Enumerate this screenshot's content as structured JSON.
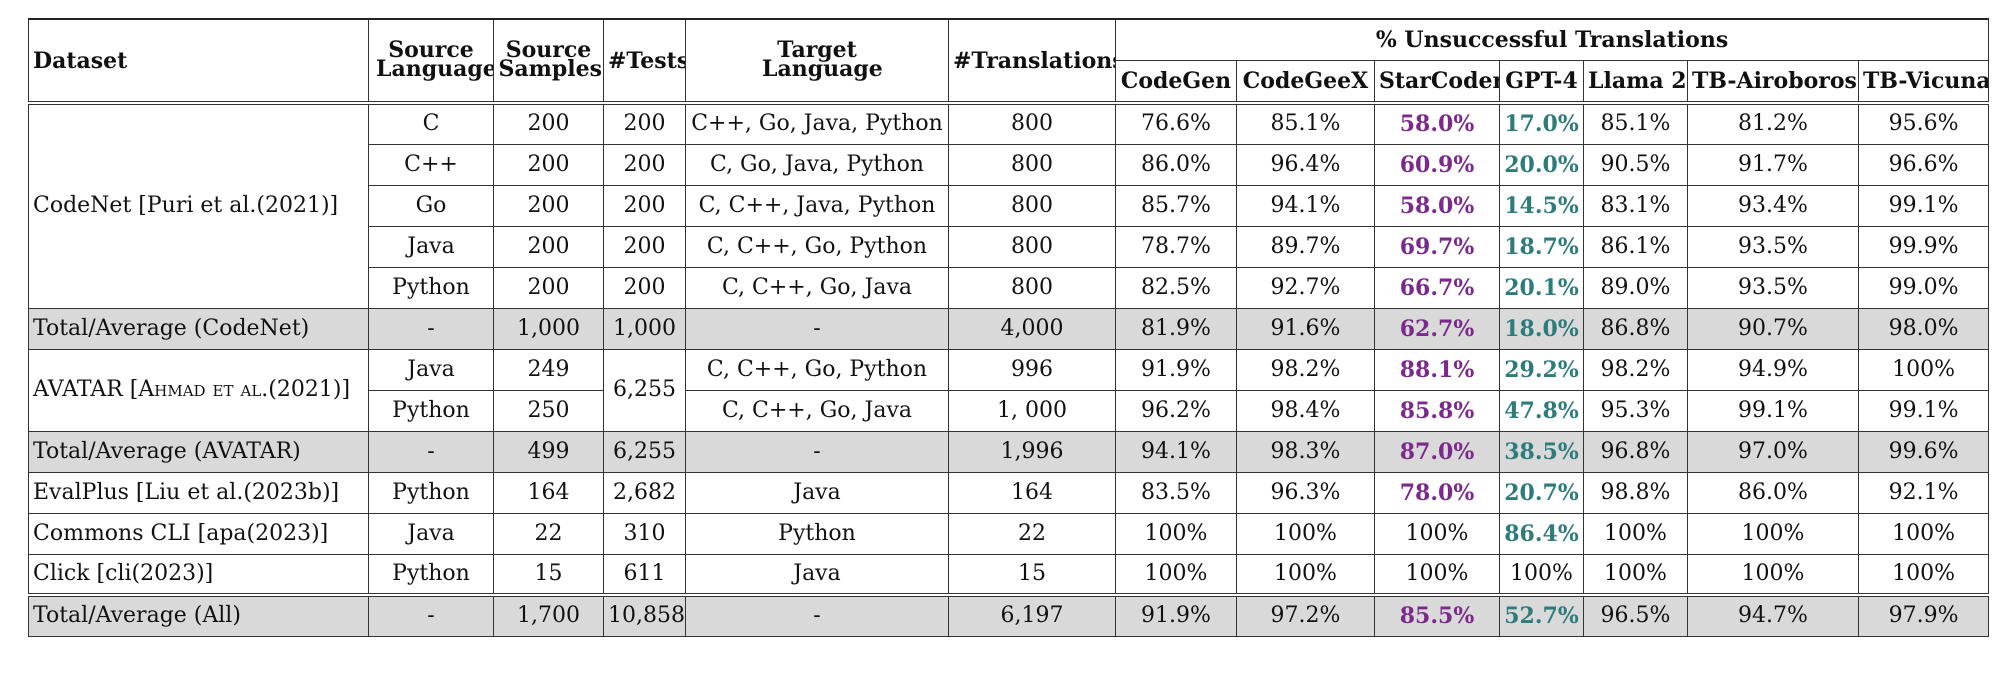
{
  "headers": {
    "dataset": "Dataset",
    "source_language": "Source Language",
    "source_samples": "Source Samples",
    "tests": "#Tests",
    "target_language": "Target Language",
    "translations": "#Translations",
    "unsuccessful": "% Unsuccessful Translations",
    "models": [
      "CodeGen",
      "CodeGeeX",
      "StarCoder",
      "GPT-4",
      "Llama 2",
      "TB-Airoboros",
      "TB-Vicuna"
    ]
  },
  "codenet": {
    "dataset": "CodeNet [Puri et al.(2021)]",
    "rows": [
      {
        "src": "C",
        "samples": "200",
        "tests": "200",
        "target": "C++, Go, Java, Python",
        "trans": "800",
        "vals": [
          "76.6%",
          "85.1%",
          "58.0%",
          "17.0%",
          "85.1%",
          "81.2%",
          "95.6%"
        ]
      },
      {
        "src": "C++",
        "samples": "200",
        "tests": "200",
        "target": "C, Go, Java, Python",
        "trans": "800",
        "vals": [
          "86.0%",
          "96.4%",
          "60.9%",
          "20.0%",
          "90.5%",
          "91.7%",
          "96.6%"
        ]
      },
      {
        "src": "Go",
        "samples": "200",
        "tests": "200",
        "target": "C, C++, Java, Python",
        "trans": "800",
        "vals": [
          "85.7%",
          "94.1%",
          "58.0%",
          "14.5%",
          "83.1%",
          "93.4%",
          "99.1%"
        ]
      },
      {
        "src": "Java",
        "samples": "200",
        "tests": "200",
        "target": "C, C++, Go, Python",
        "trans": "800",
        "vals": [
          "78.7%",
          "89.7%",
          "69.7%",
          "18.7%",
          "86.1%",
          "93.5%",
          "99.9%"
        ]
      },
      {
        "src": "Python",
        "samples": "200",
        "tests": "200",
        "target": "C, C++, Go, Java",
        "trans": "800",
        "vals": [
          "82.5%",
          "92.7%",
          "66.7%",
          "20.1%",
          "89.0%",
          "93.5%",
          "99.0%"
        ]
      }
    ],
    "total": {
      "label": "Total/Average (CodeNet)",
      "src": "-",
      "samples": "1,000",
      "tests": "1,000",
      "target": "-",
      "trans": "4,000",
      "vals": [
        "81.9%",
        "91.6%",
        "62.7%",
        "18.0%",
        "86.8%",
        "90.7%",
        "98.0%"
      ]
    }
  },
  "avatar": {
    "dataset": "AVATAR [Ahmad et al.(2021)]",
    "tests": "6,255",
    "rows": [
      {
        "src": "Java",
        "samples": "249",
        "target": "C, C++, Go, Python",
        "trans": "996",
        "vals": [
          "91.9%",
          "98.2%",
          "88.1%",
          "29.2%",
          "98.2%",
          "94.9%",
          "100%"
        ]
      },
      {
        "src": "Python",
        "samples": "250",
        "target": "C, C++, Go, Java",
        "trans": "1, 000",
        "vals": [
          "96.2%",
          "98.4%",
          "85.8%",
          "47.8%",
          "95.3%",
          "99.1%",
          "99.1%"
        ]
      }
    ],
    "total": {
      "label": "Total/Average (AVATAR)",
      "src": "-",
      "samples": "499",
      "tests": "6,255",
      "target": "-",
      "trans": "1,996",
      "vals": [
        "94.1%",
        "98.3%",
        "87.0%",
        "38.5%",
        "96.8%",
        "97.0%",
        "99.6%"
      ]
    }
  },
  "others": [
    {
      "dataset": "EvalPlus [Liu et al.(2023b)]",
      "src": "Python",
      "samples": "164",
      "tests": "2,682",
      "target": "Java",
      "trans": "164",
      "vals": [
        "83.5%",
        "96.3%",
        "78.0%",
        "20.7%",
        "98.8%",
        "86.0%",
        "92.1%"
      ],
      "bold_starcoder": true,
      "bold_gpt4": true
    },
    {
      "dataset": "Commons CLI [apa(2023)]",
      "src": "Java",
      "samples": "22",
      "tests": "310",
      "target": "Python",
      "trans": "22",
      "vals": [
        "100%",
        "100%",
        "100%",
        "86.4%",
        "100%",
        "100%",
        "100%"
      ],
      "bold_starcoder": false,
      "bold_gpt4": true
    },
    {
      "dataset": "Click [cli(2023)]",
      "src": "Python",
      "samples": "15",
      "tests": "611",
      "target": "Java",
      "trans": "15",
      "vals": [
        "100%",
        "100%",
        "100%",
        "100%",
        "100%",
        "100%",
        "100%"
      ],
      "bold_starcoder": false,
      "bold_gpt4": false
    }
  ],
  "grand_total": {
    "label": "Total/Average (All)",
    "src": "-",
    "samples": "1,700",
    "tests": "10,858",
    "target": "-",
    "trans": "6,197",
    "vals": [
      "91.9%",
      "97.2%",
      "85.5%",
      "52.7%",
      "96.5%",
      "94.7%",
      "97.9%"
    ]
  },
  "colors": {
    "starcoder_highlight": "#7b2a8c",
    "gpt4_highlight": "#2e7b7c",
    "total_row_bg": "#d9d9d9"
  }
}
